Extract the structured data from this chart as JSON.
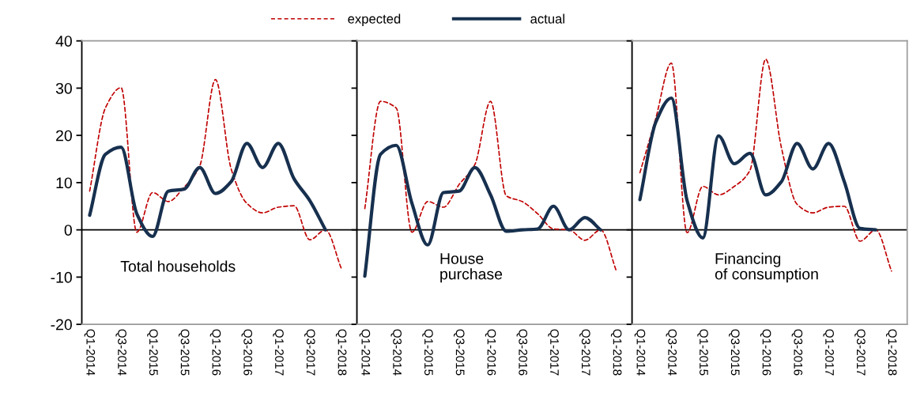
{
  "chart_data": [
    {
      "type": "line",
      "categories": [
        "Q1-2014",
        null,
        "Q3-2014",
        null,
        "Q1-2015",
        null,
        "Q3-2015",
        null,
        "Q1-2016",
        null,
        "Q3-2016",
        null,
        "Q1-2017",
        null,
        "Q3-2017",
        null,
        "Q1-2018"
      ],
      "series": [
        {
          "name": "expected",
          "color": "#c00000",
          "line_style": "dashed",
          "values": [
            8.2,
            25.8,
            30.1,
            -0.5,
            7.9,
            6,
            9,
            13.5,
            31.8,
            12.9,
            5.6,
            3.6,
            4.8,
            5.1,
            -2.1,
            0,
            -8.1
          ]
        },
        {
          "name": "actual",
          "color": "#17304f",
          "line_style": "solid",
          "values": [
            3.1,
            16,
            17.5,
            3.4,
            -1.4,
            8.2,
            8.6,
            13.2,
            7.7,
            10.2,
            18.3,
            13.2,
            18.3,
            10.8,
            6.2,
            0,
            null
          ]
        }
      ],
      "ylim": [
        -20,
        40
      ],
      "yticks": [
        -20,
        -10,
        0,
        10,
        20,
        30,
        40
      ],
      "grid": false,
      "legend": "top",
      "marker": "none",
      "ref_lines": [
        {
          "axis": "y",
          "value": 0,
          "color": "#000000"
        }
      ],
      "annotations": [
        "Total households"
      ]
    },
    {
      "type": "line",
      "categories": [
        "Q1-2014",
        null,
        "Q3-2014",
        null,
        "Q1-2015",
        null,
        "Q3-2015",
        null,
        "Q1-2016",
        null,
        "Q3-2016",
        null,
        "Q1-2017",
        null,
        "Q3-2017",
        null,
        "Q1-2018"
      ],
      "series": [
        {
          "color": "#c00000",
          "line_style": "dashed",
          "values": [
            4.5,
            27.2,
            25.8,
            -0.5,
            6,
            4.8,
            9.6,
            13.8,
            27.2,
            7.2,
            6,
            3.4,
            0.2,
            0,
            -2.2,
            0,
            -8.7
          ]
        },
        {
          "color": "#17304f",
          "line_style": "solid",
          "values": [
            -9.8,
            16,
            17.9,
            5.6,
            -3.2,
            7.9,
            8.2,
            13.2,
            7.4,
            -0.3,
            0,
            0.2,
            5,
            0,
            2.6,
            0,
            null
          ]
        }
      ],
      "ylim": [
        -20,
        40
      ],
      "yticks": [
        -20,
        -10,
        0,
        10,
        20,
        30,
        40
      ],
      "grid": false,
      "marker": "none",
      "tick_labels": "x",
      "ref_lines": [
        {
          "axis": "y",
          "value": 0,
          "color": "#000000"
        }
      ],
      "annotations": [
        "House\npurchase"
      ]
    },
    {
      "type": "line",
      "categories": [
        "Q1-2014",
        null,
        "Q3-2014",
        null,
        "Q1-2015",
        null,
        "Q3-2015",
        null,
        "Q1-2016",
        null,
        "Q3-2016",
        null,
        "Q1-2017",
        null,
        "Q3-2017",
        null,
        "Q1-2018"
      ],
      "series": [
        {
          "color": "#c00000",
          "line_style": "dashed",
          "values": [
            12.1,
            23.5,
            35.3,
            -0.6,
            9.2,
            7.4,
            9.2,
            12.6,
            36.1,
            17.4,
            5.4,
            3.6,
            4.8,
            5,
            -2.4,
            0,
            -8.7
          ]
        },
        {
          "color": "#17304f",
          "line_style": "solid",
          "values": [
            6.4,
            22.7,
            27.9,
            6.2,
            -1.7,
            19.9,
            14,
            16.2,
            7.4,
            10.2,
            18.3,
            12.9,
            18.3,
            10.2,
            0.3,
            0,
            null
          ]
        }
      ],
      "ylim": [
        -20,
        40
      ],
      "yticks": [
        -20,
        -10,
        0,
        10,
        20,
        30,
        40
      ],
      "grid": false,
      "marker": "none",
      "tick_labels": "x",
      "ref_lines": [
        {
          "axis": "y",
          "value": 0,
          "color": "#000000"
        }
      ],
      "annotations": [
        "Financing\nof consumption"
      ]
    }
  ]
}
